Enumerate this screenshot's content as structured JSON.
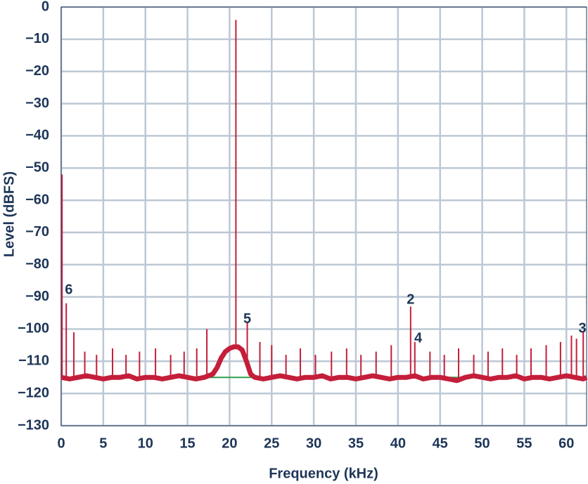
{
  "chart_data": {
    "type": "line",
    "xlabel": "Frequency (kHz)",
    "ylabel": "Level (dBFS)",
    "xlim": [
      0,
      62.4
    ],
    "ylim": [
      -130,
      0
    ],
    "xticks": [
      0,
      5,
      10,
      15,
      20,
      25,
      30,
      35,
      40,
      45,
      50,
      55,
      60
    ],
    "yticks": [
      0,
      {
        "value": -10,
        "label": "−10"
      },
      {
        "value": -20,
        "label": "−20"
      },
      {
        "value": -30,
        "label": "−30"
      },
      {
        "value": -40,
        "label": "−40"
      },
      {
        "value": -50,
        "label": "−50"
      },
      {
        "value": -60,
        "label": "−60"
      },
      {
        "value": -70,
        "label": "−70"
      },
      {
        "value": -80,
        "label": "−80"
      },
      {
        "value": -90,
        "label": "−90"
      },
      {
        "value": -100,
        "label": "−100"
      },
      {
        "value": -110,
        "label": "−110"
      },
      {
        "value": -120,
        "label": "−120"
      },
      {
        "value": -130,
        "label": "−130"
      }
    ],
    "grid": true,
    "series": [
      {
        "color": "#2e9e4a",
        "x": [
          0,
          62.4
        ],
        "values": [
          -115,
          -115
        ]
      },
      {
        "color": "#c41e3a",
        "x": [
          0,
          1,
          2,
          3,
          4,
          5,
          6,
          7,
          8,
          9,
          10,
          11,
          12,
          13,
          14,
          15,
          16,
          17,
          18,
          18.5,
          19,
          19.5,
          20,
          20.5,
          21,
          21.5,
          22,
          22.5,
          23,
          24,
          25,
          26,
          27,
          28,
          29,
          30,
          31,
          32,
          33,
          34,
          35,
          36,
          37,
          38,
          39,
          40,
          41,
          42,
          43,
          44,
          45,
          46,
          47,
          48,
          49,
          50,
          51,
          52,
          53,
          54,
          55,
          56,
          57,
          58,
          59,
          60,
          61,
          62,
          62.4
        ],
        "values": [
          -115,
          -115.5,
          -115,
          -114.5,
          -115,
          -115.5,
          -115,
          -115,
          -114.5,
          -115.5,
          -115,
          -115,
          -115.5,
          -115,
          -114.5,
          -115,
          -115.5,
          -115,
          -114,
          -112,
          -109,
          -107,
          -106,
          -105.5,
          -105.5,
          -106.5,
          -110,
          -114,
          -115,
          -115.5,
          -115,
          -114.5,
          -115,
          -115.5,
          -115,
          -115,
          -114.5,
          -115.5,
          -115,
          -115,
          -115.5,
          -115,
          -114.5,
          -115,
          -115.5,
          -115,
          -115,
          -114.5,
          -115.5,
          -115,
          -115,
          -115.5,
          -116,
          -115,
          -114.5,
          -115,
          -115.5,
          -115,
          -115,
          -114.5,
          -115.5,
          -115,
          -115,
          -115.5,
          -115,
          -114.5,
          -115,
          -115.5,
          -115
        ]
      },
      {
        "color": "#c41e3a",
        "style": "stem",
        "x": [
          0.1,
          0.6,
          1.5,
          2.8,
          4.2,
          6.1,
          7.7,
          9.3,
          11.2,
          13.0,
          14.6,
          16.1,
          17.3,
          20.75,
          22.1,
          23.6,
          25.0,
          26.7,
          28.4,
          30.2,
          32.1,
          33.9,
          35.6,
          37.4,
          39.2,
          41.5,
          42.0,
          43.8,
          45.5,
          47.2,
          49.0,
          50.7,
          52.4,
          54.1,
          55.8,
          57.6,
          59.3,
          60.6,
          61.2,
          62.0
        ],
        "values": [
          -52,
          -92,
          -101,
          -107,
          -108,
          -106,
          -108,
          -107,
          -106,
          -108,
          -107,
          -106,
          -100,
          -4,
          -98,
          -104,
          -105,
          -108,
          -106,
          -108,
          -107,
          -106,
          -108,
          -107,
          -105,
          -93,
          -104,
          -107,
          -108,
          -106,
          -108,
          -107,
          -106,
          -108,
          -106,
          -105,
          -104,
          -102,
          -103,
          -101
        ]
      }
    ],
    "annotations": [
      {
        "text": "6",
        "x": 0.9,
        "y": -88
      },
      {
        "text": "5",
        "x": 22.1,
        "y": -97
      },
      {
        "text": "2",
        "x": 41.5,
        "y": -91
      },
      {
        "text": "4",
        "x": 42.4,
        "y": -103
      },
      {
        "text": "3",
        "x": 61.9,
        "y": -100
      }
    ]
  }
}
